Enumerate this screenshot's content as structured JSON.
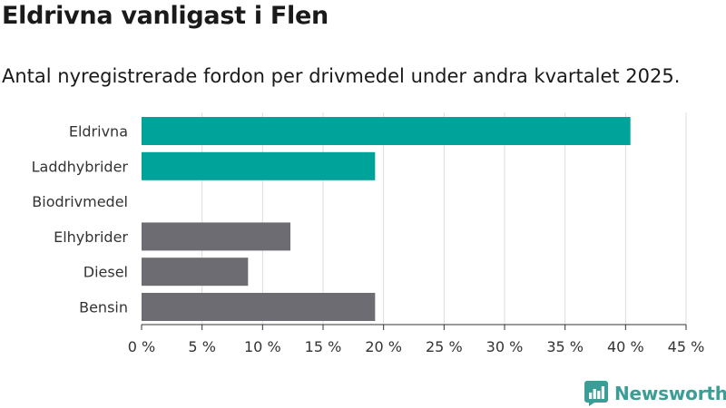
{
  "header": {
    "title": "Eldrivna vanligast i Flen",
    "subtitle": "Antal nyregistrerade fordon per drivmedel under andra kvartalet 2025."
  },
  "brand": {
    "name": "Newsworthy",
    "icon": "newsworthy-logo-icon"
  },
  "colors": {
    "accent": "#00a39a",
    "neutral": "#6d6c73",
    "grid": "#dddddd",
    "brand": "#3a9e96"
  },
  "chart_data": {
    "type": "bar",
    "orientation": "horizontal",
    "title": "Eldrivna vanligast i Flen",
    "subtitle": "Antal nyregistrerade fordon per drivmedel under andra kvartalet 2025.",
    "xlabel": "",
    "ylabel": "",
    "categories": [
      "Eldrivna",
      "Laddhybrider",
      "Biodrivmedel",
      "Elhybrider",
      "Diesel",
      "Bensin"
    ],
    "values": [
      40.4,
      19.3,
      0,
      12.3,
      8.8,
      19.3
    ],
    "bar_colors": [
      "#00a39a",
      "#00a39a",
      "#00a39a",
      "#6d6c73",
      "#6d6c73",
      "#6d6c73"
    ],
    "xlim": [
      0,
      45
    ],
    "xticks": [
      0,
      5,
      10,
      15,
      20,
      25,
      30,
      35,
      40,
      45
    ],
    "xtick_labels": [
      "0 %",
      "5 %",
      "10 %",
      "15 %",
      "20 %",
      "25 %",
      "30 %",
      "35 %",
      "40 %",
      "45 %"
    ],
    "grid": "vertical",
    "legend": "none"
  }
}
